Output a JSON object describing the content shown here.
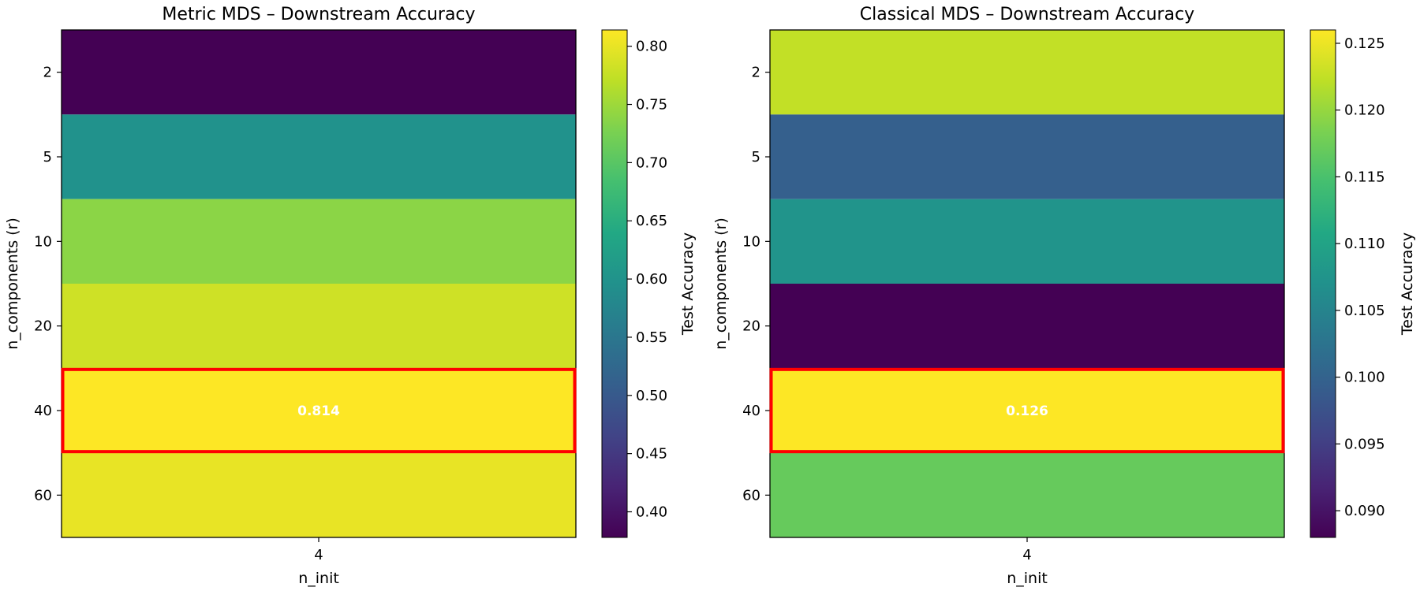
{
  "chart_data": [
    {
      "type": "heatmap",
      "title": "Metric MDS – Downstream Accuracy",
      "xlabel": "n_init",
      "ylabel": "n_components (r)",
      "x_categories": [
        "4"
      ],
      "y_categories": [
        "2",
        "5",
        "10",
        "20",
        "40",
        "60"
      ],
      "values": [
        [
          0.378
        ],
        [
          0.598
        ],
        [
          0.738
        ],
        [
          0.782
        ],
        [
          0.814
        ],
        [
          0.8
        ]
      ],
      "colorbar": {
        "label": "Test Accuracy",
        "range": [
          0.378,
          0.814
        ],
        "ticks": [
          "0.40",
          "0.45",
          "0.50",
          "0.55",
          "0.60",
          "0.65",
          "0.70",
          "0.75",
          "0.80"
        ]
      },
      "highlight": {
        "row": 4,
        "col": 0,
        "label": "0.814",
        "color": "#ff0000"
      },
      "colormap": "viridis"
    },
    {
      "type": "heatmap",
      "title": "Classical MDS – Downstream Accuracy",
      "xlabel": "n_init",
      "ylabel": "n_components (r)",
      "x_categories": [
        "4"
      ],
      "y_categories": [
        "2",
        "5",
        "10",
        "20",
        "40",
        "60"
      ],
      "values": [
        [
          0.1225
        ],
        [
          0.0995
        ],
        [
          0.1075
        ],
        [
          0.088
        ],
        [
          0.126
        ],
        [
          0.117
        ]
      ],
      "colorbar": {
        "label": "Test Accuracy",
        "range": [
          0.088,
          0.126
        ],
        "ticks": [
          "0.090",
          "0.095",
          "0.100",
          "0.105",
          "0.110",
          "0.115",
          "0.120",
          "0.125"
        ]
      },
      "highlight": {
        "row": 4,
        "col": 0,
        "label": "0.126",
        "color": "#ff0000"
      },
      "colormap": "viridis"
    }
  ]
}
